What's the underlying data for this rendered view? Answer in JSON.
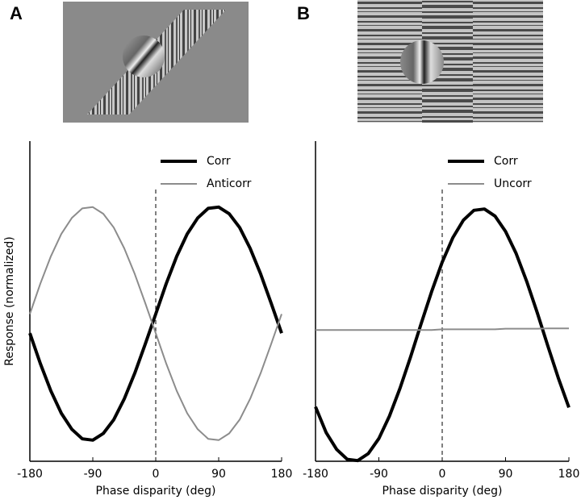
{
  "chart_data": [
    {
      "type": "line",
      "panel_label": "A",
      "xlabel": "Phase disparity (deg)",
      "ylabel": "Response (normalized)",
      "x": [
        -180,
        -165,
        -150,
        -135,
        -120,
        -105,
        -90,
        -75,
        -60,
        -45,
        -30,
        -15,
        0,
        15,
        30,
        45,
        60,
        75,
        90,
        105,
        120,
        135,
        150,
        165,
        180
      ],
      "series": [
        {
          "name": "Corr",
          "color": "#000000",
          "width": 4,
          "values": [
            0.4,
            0.305,
            0.22,
            0.15,
            0.1,
            0.07,
            0.066,
            0.087,
            0.13,
            0.195,
            0.275,
            0.366,
            0.46,
            0.555,
            0.64,
            0.71,
            0.76,
            0.79,
            0.794,
            0.773,
            0.73,
            0.665,
            0.585,
            0.494,
            0.4
          ]
        },
        {
          "name": "Anticorr",
          "color": "#8c8c8c",
          "width": 2,
          "values": [
            0.46,
            0.555,
            0.64,
            0.71,
            0.76,
            0.79,
            0.794,
            0.773,
            0.73,
            0.665,
            0.585,
            0.494,
            0.4,
            0.305,
            0.22,
            0.15,
            0.1,
            0.07,
            0.066,
            0.087,
            0.13,
            0.195,
            0.275,
            0.366,
            0.46
          ]
        }
      ],
      "xlim": [
        -180,
        180
      ],
      "xticks": [
        -180,
        -90,
        0,
        90,
        180
      ],
      "ylim": [
        0,
        1
      ],
      "vline": 0,
      "legend": "upper right"
    },
    {
      "type": "line",
      "panel_label": "B",
      "xlabel": "Phase disparity (deg)",
      "x": [
        -180,
        -165,
        -150,
        -135,
        -120,
        -105,
        -90,
        -75,
        -60,
        -45,
        -30,
        -15,
        0,
        15,
        30,
        45,
        60,
        75,
        90,
        105,
        120,
        135,
        150,
        165,
        180
      ],
      "series": [
        {
          "name": "Corr",
          "color": "#000000",
          "width": 4,
          "values": [
            0.17,
            0.09,
            0.037,
            0.006,
            0.002,
            0.024,
            0.071,
            0.141,
            0.228,
            0.326,
            0.429,
            0.53,
            0.622,
            0.698,
            0.753,
            0.784,
            0.788,
            0.766,
            0.718,
            0.649,
            0.562,
            0.464,
            0.361,
            0.26,
            0.168
          ]
        },
        {
          "name": "Uncorr",
          "color": "#8c8c8c",
          "width": 2,
          "values": [
            0.41,
            0.41,
            0.41,
            0.41,
            0.41,
            0.41,
            0.41,
            0.41,
            0.41,
            0.41,
            0.41,
            0.41,
            0.412,
            0.412,
            0.412,
            0.412,
            0.412,
            0.412,
            0.414,
            0.414,
            0.414,
            0.414,
            0.415,
            0.415,
            0.415
          ]
        }
      ],
      "xlim": [
        -180,
        180
      ],
      "xticks": [
        -180,
        -90,
        0,
        90,
        180
      ],
      "ylim": [
        0,
        1
      ],
      "vline": 0,
      "legend": "upper right"
    }
  ]
}
